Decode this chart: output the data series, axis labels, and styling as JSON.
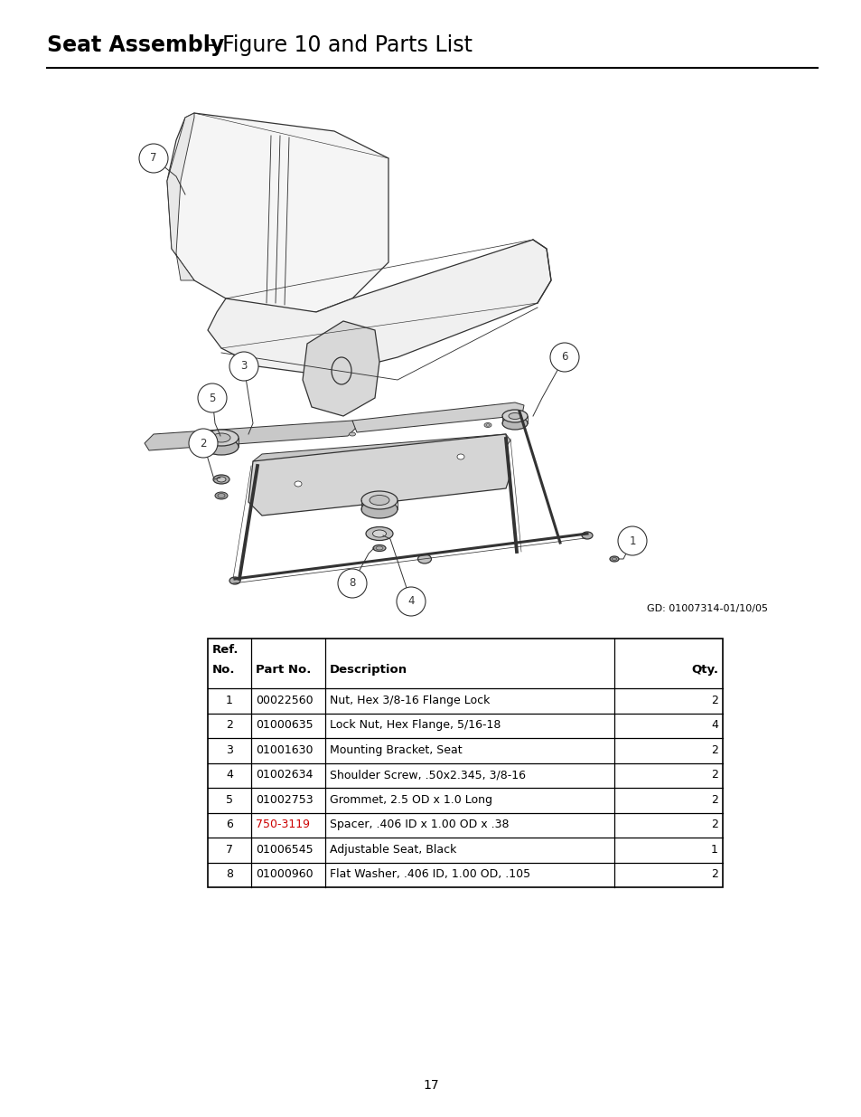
{
  "title_bold": "Seat Assembly",
  "title_normal": "- Figure 10 and Parts List",
  "gd_label": "GD: 01007314-01/10/05",
  "page_number": "17",
  "table_rows": [
    [
      "1",
      "00022560",
      "Nut, Hex 3/8-16 Flange Lock",
      "2"
    ],
    [
      "2",
      "01000635",
      "Lock Nut, Hex Flange, 5/16-18",
      "4"
    ],
    [
      "3",
      "01001630",
      "Mounting Bracket, Seat",
      "2"
    ],
    [
      "4",
      "01002634",
      "Shoulder Screw, .50x2.345, 3/8-16",
      "2"
    ],
    [
      "5",
      "01002753",
      "Grommet, 2.5 OD x 1.0 Long",
      "2"
    ],
    [
      "6",
      "750-3119",
      "Spacer, .406 ID x 1.00 OD x .38",
      "2"
    ],
    [
      "7",
      "01006545",
      "Adjustable Seat, Black",
      "1"
    ],
    [
      "8",
      "01000960",
      "Flat Washer, .406 ID, 1.00 OD, .105",
      "2"
    ]
  ],
  "red_part_no_row": 5,
  "background_color": "#ffffff",
  "text_color": "#000000",
  "red_color": "#cc0000",
  "line_color": "#000000"
}
